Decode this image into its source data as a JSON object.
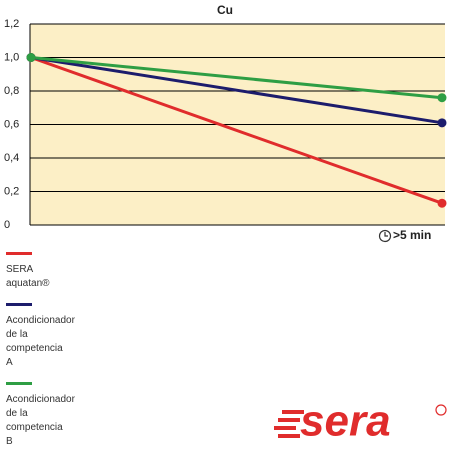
{
  "chart_data": {
    "type": "line",
    "title": "Cu",
    "categories": [
      null,
      null
    ],
    "x_label": ">5 min",
    "series": [
      {
        "name": "SERA\naquatan®",
        "color": "#e02c2c",
        "values": [
          1.0,
          0.13
        ]
      },
      {
        "name": "Acondicionador\nde la\ncompetencia\nA",
        "color": "#1c1c6c",
        "values": [
          1.0,
          0.61
        ]
      },
      {
        "name": "Acondicionador\nde la\ncompetencia\nB",
        "color": "#2e9e44",
        "values": [
          1.0,
          0.76
        ]
      }
    ],
    "ylim": [
      0,
      1.2
    ],
    "yticks": [
      0,
      {
        "value": 0.2,
        "label": "0,2"
      },
      {
        "value": 0.4,
        "label": "0,4"
      },
      {
        "value": 0.6,
        "label": "0,6"
      },
      {
        "value": 0.8,
        "label": "0,8"
      },
      {
        "value": 1.0,
        "label": "1,0"
      },
      {
        "value": 1.2,
        "label": "1,2"
      }
    ],
    "grid": true,
    "background": "#fcefc6"
  },
  "logo": "sera"
}
